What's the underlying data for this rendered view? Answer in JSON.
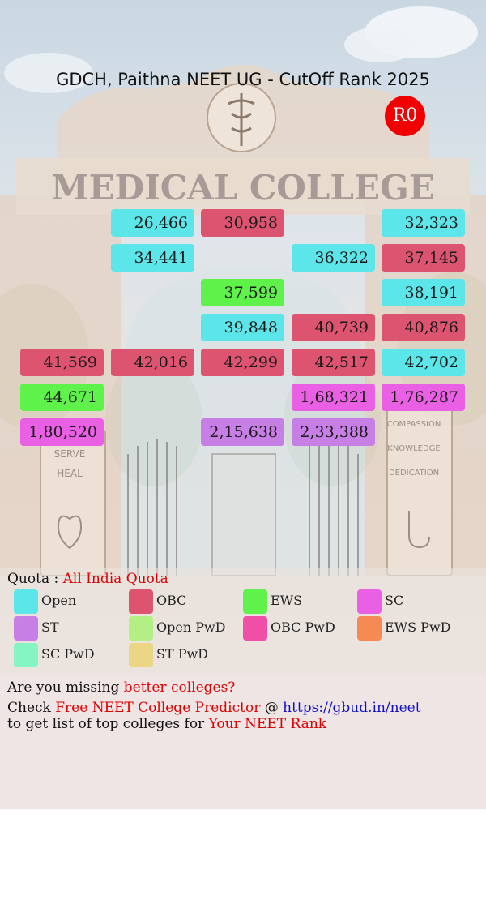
{
  "title": "GDCH, Paithna NEET UG - CutOff Rank 2025",
  "round_badge": "R0",
  "background": {
    "gate_text": "MEDICAL COLLEGE",
    "pillar_left": [
      "SERVE",
      "HEAL"
    ],
    "pillar_right": [
      "COMPASSION",
      "KNOWLEDGE",
      "DEDICATION"
    ]
  },
  "colors": {
    "Open": "#5ce6ea",
    "OBC": "#dd5470",
    "EWS": "#5ff24a",
    "SC": "#ea60e4",
    "ST": "#c77fe6",
    "Open PwD": "#b3ef84",
    "OBC PwD": "#ef4fa6",
    "EWS PwD": "#f58a55",
    "SC PwD": "#86f5c4",
    "ST PwD": "#ead684"
  },
  "chart_data": {
    "type": "table",
    "title": "GDCH, Paithna NEET UG - CutOff Rank 2025",
    "columns": 5,
    "rows": [
      [
        {
          "value": "26,466",
          "category": "Open",
          "col": 1
        },
        {
          "value": "30,958",
          "category": "OBC",
          "col": 2
        },
        {
          "value": "32,323",
          "category": "Open",
          "col": 4
        }
      ],
      [
        {
          "value": "34,441",
          "category": "Open",
          "col": 1
        },
        {
          "value": "36,322",
          "category": "Open",
          "col": 3
        },
        {
          "value": "37,145",
          "category": "OBC",
          "col": 4
        }
      ],
      [
        {
          "value": "37,599",
          "category": "EWS",
          "col": 2
        },
        {
          "value": "38,191",
          "category": "Open",
          "col": 4
        }
      ],
      [
        {
          "value": "39,848",
          "category": "Open",
          "col": 2
        },
        {
          "value": "40,739",
          "category": "OBC",
          "col": 3
        },
        {
          "value": "40,876",
          "category": "OBC",
          "col": 4
        }
      ],
      [
        {
          "value": "41,569",
          "category": "OBC",
          "col": 0
        },
        {
          "value": "42,016",
          "category": "OBC",
          "col": 1
        },
        {
          "value": "42,299",
          "category": "OBC",
          "col": 2
        },
        {
          "value": "42,517",
          "category": "OBC",
          "col": 3
        },
        {
          "value": "42,702",
          "category": "Open",
          "col": 4
        }
      ],
      [
        {
          "value": "44,671",
          "category": "EWS",
          "col": 0
        },
        {
          "value": "1,68,321",
          "category": "SC",
          "col": 3
        },
        {
          "value": "1,76,287",
          "category": "SC",
          "col": 4
        }
      ],
      [
        {
          "value": "1,80,520",
          "category": "SC",
          "col": 0
        },
        {
          "value": "2,15,638",
          "category": "ST",
          "col": 2
        },
        {
          "value": "2,33,388",
          "category": "ST",
          "col": 3
        }
      ]
    ]
  },
  "quota": {
    "label": "Quota :",
    "value": "All India Quota"
  },
  "legend": [
    "Open",
    "OBC",
    "EWS",
    "SC",
    "ST",
    "Open PwD",
    "OBC PwD",
    "EWS PwD",
    "SC PwD",
    "ST PwD"
  ],
  "footer": {
    "line1_a": "Are you missing",
    "line1_b": "better colleges?",
    "line2_a": "Check",
    "line2_b": "Free NEET College Predictor",
    "line2_c": "@",
    "line2_d": "https://gbud.in/neet",
    "line3_a": "to get list of top colleges for",
    "line3_b": "Your NEET Rank"
  }
}
